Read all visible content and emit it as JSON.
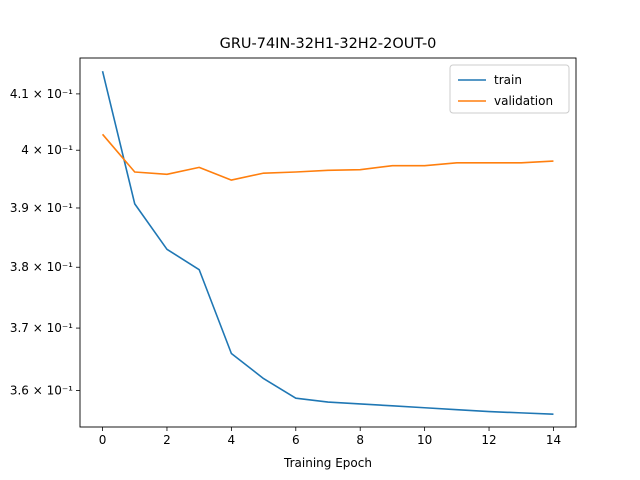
{
  "chart_data": {
    "type": "line",
    "title": "GRU-74IN-32H1-32H2-2OUT-0",
    "xlabel": "Training Epoch",
    "ylabel": "",
    "yscale": "log",
    "xlim": [
      -0.7,
      14.7
    ],
    "ylim": [
      0.3543,
      0.4165
    ],
    "x_ticks": [
      0,
      2,
      4,
      6,
      8,
      10,
      12,
      14
    ],
    "y_ticks": [
      {
        "value": 0.36,
        "label": "3.6 × 10⁻¹"
      },
      {
        "value": 0.37,
        "label": "3.7 × 10⁻¹"
      },
      {
        "value": 0.38,
        "label": "3.8 × 10⁻¹"
      },
      {
        "value": 0.39,
        "label": "3.9 × 10⁻¹"
      },
      {
        "value": 0.4,
        "label": "4 × 10⁻¹"
      },
      {
        "value": 0.41,
        "label": "4.1 × 10⁻¹"
      }
    ],
    "x": [
      0,
      1,
      2,
      3,
      4,
      5,
      6,
      7,
      8,
      9,
      10,
      11,
      12,
      13,
      14
    ],
    "series": [
      {
        "name": "train",
        "color": "#1f77b4",
        "values": [
          0.4141,
          0.3907,
          0.383,
          0.3796,
          0.3659,
          0.3619,
          0.3588,
          0.3582,
          0.3579,
          0.3576,
          0.3573,
          0.357,
          0.3567,
          0.3565,
          0.3563
        ]
      },
      {
        "name": "validation",
        "color": "#ff7f0e",
        "values": [
          0.4028,
          0.3962,
          0.3958,
          0.397,
          0.3948,
          0.396,
          0.3962,
          0.3965,
          0.3966,
          0.3973,
          0.3973,
          0.3978,
          0.3978,
          0.3978,
          0.3981
        ]
      }
    ],
    "legend": {
      "position": "top-right",
      "entries": [
        "train",
        "validation"
      ]
    },
    "grid": false
  }
}
